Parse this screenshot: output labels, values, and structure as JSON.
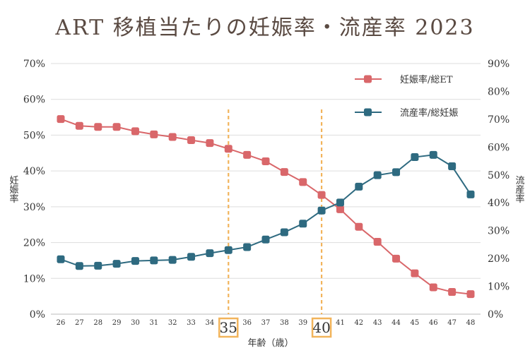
{
  "chart_data": {
    "type": "line",
    "title": "ART 移植当たりの妊娠率・流産率 2023",
    "xlabel": "年齢（歳）",
    "ylabel_left": "妊娠率",
    "ylabel_right": "流産率",
    "x": [
      26,
      27,
      28,
      29,
      30,
      31,
      32,
      33,
      34,
      35,
      36,
      37,
      38,
      39,
      40,
      41,
      42,
      43,
      44,
      45,
      46,
      47,
      48
    ],
    "x_tick_labels": [
      "26",
      "27",
      "28",
      "29",
      "30",
      "31",
      "32",
      "33",
      "34",
      "35",
      "36",
      "37",
      "38",
      "39",
      "40",
      "41",
      "42",
      "43",
      "44",
      "45",
      "46",
      "47",
      "48"
    ],
    "ylim_left": [
      0,
      70
    ],
    "ylim_right": [
      0,
      90
    ],
    "y_left_ticks": [
      "0%",
      "10%",
      "20%",
      "30%",
      "40%",
      "50%",
      "60%",
      "70%"
    ],
    "y_right_ticks": [
      "0%",
      "10%",
      "20%",
      "30%",
      "40%",
      "50%",
      "60%",
      "70%",
      "80%",
      "90%"
    ],
    "series": [
      {
        "name": "妊娠率/総ET",
        "axis": "left",
        "color": "#d9676a",
        "values": [
          54.5,
          52.6,
          52.3,
          52.3,
          51.1,
          50.2,
          49.5,
          48.6,
          47.8,
          46.2,
          44.5,
          42.7,
          39.7,
          36.9,
          33.3,
          29.3,
          24.4,
          20.2,
          15.5,
          11.4,
          7.5,
          6.2,
          5.6
        ]
      },
      {
        "name": "流産率/総妊娠",
        "axis": "right",
        "color": "#2e6a80",
        "values": [
          19.7,
          17.3,
          17.4,
          18.1,
          19.1,
          19.3,
          19.5,
          20.6,
          21.9,
          23.0,
          24.1,
          26.8,
          29.4,
          32.5,
          37.2,
          40.1,
          45.8,
          49.9,
          51.0,
          56.4,
          57.2,
          53.1,
          43.0
        ]
      }
    ],
    "highlight_x": [
      35,
      40
    ],
    "highlight_color": "#f2b45b",
    "grid": true,
    "legend_position": "top-right"
  }
}
